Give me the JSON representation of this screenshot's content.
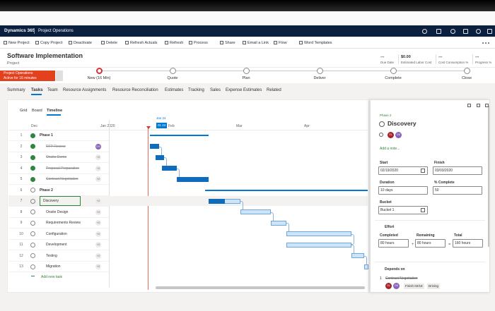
{
  "header": {
    "app": "Dynamics 365",
    "area": "Project Operations"
  },
  "toolbar": [
    "New Project",
    "Copy Project",
    "Deactivate",
    "Delete",
    "Refresh Actuals",
    "Refresh",
    "Process",
    "Share",
    "Email a Link",
    "Flow",
    "Word Templates"
  ],
  "record": {
    "title": "Software Implementation",
    "type": "Project",
    "fields": [
      {
        "value": "---",
        "label": "Due Date"
      },
      {
        "value": "$0.00",
        "label": "Estimated Labor Cost"
      },
      {
        "value": "---",
        "label": "Cost Consumption %"
      },
      {
        "value": "---",
        "label": "Progress %"
      }
    ]
  },
  "process": {
    "name": "Project Operations",
    "status": "Active for 16 minutes",
    "stages": [
      "New (16 Min)",
      "Quote",
      "Plan",
      "Deliver",
      "Complete",
      "Close"
    ]
  },
  "tabs": [
    "Summary",
    "Tasks",
    "Team",
    "Resource Assignments",
    "Resource Reconciliation",
    "Estimates",
    "Tracking",
    "Sales",
    "Expense Estimates",
    "Related"
  ],
  "views": [
    "Grid",
    "Board",
    "Timeline"
  ],
  "timeline": {
    "months": [
      "Dec",
      "Jan 2020",
      "Feb",
      "Mar",
      "Apr"
    ],
    "today": "Jan 24",
    "today_badge": "01 24"
  },
  "tasks": [
    {
      "number": 1,
      "name": "Phase 1",
      "completed": true
    },
    {
      "number": 2,
      "name": "RFP Review",
      "completed": true,
      "assignee": "DS"
    },
    {
      "number": 3,
      "name": "Onsite Demo",
      "completed": true,
      "assignee": "+2"
    },
    {
      "number": 4,
      "name": "Proposal Preparation",
      "completed": true,
      "assignee": "+2"
    },
    {
      "number": 5,
      "name": "Contract Negotiation",
      "completed": true,
      "assignee": "+2"
    },
    {
      "number": 6,
      "name": "Phase 2",
      "completed": false
    },
    {
      "number": 7,
      "name": "Discovery",
      "completed": false,
      "assignee": "+2"
    },
    {
      "number": 8,
      "name": "Onsite Design",
      "completed": false,
      "assignee": "+2"
    },
    {
      "number": 9,
      "name": "Requirements Review",
      "completed": false,
      "assignee": "+2"
    },
    {
      "number": 10,
      "name": "Configuration",
      "completed": false,
      "assignee": "+2"
    },
    {
      "number": 11,
      "name": "Development",
      "completed": false,
      "assignee": "+2"
    },
    {
      "number": 12,
      "name": "Testing",
      "completed": false,
      "assignee": "+2"
    },
    {
      "number": 13,
      "name": "Migration",
      "completed": false,
      "assignee": "+2"
    }
  ],
  "add_task": "Add new task",
  "details": {
    "phase": "Phase 2",
    "name": "Discovery",
    "people": [
      "SL",
      "DS"
    ],
    "note": "Add a note...",
    "start_label": "Start",
    "start": "02/19/2020",
    "finish_label": "Finish",
    "finish": "03/03/2020",
    "duration_label": "Duration",
    "duration": "10 days",
    "complete_label": "% Complete",
    "complete": 50,
    "bucket_label": "Bucket",
    "bucket": "Bucket 1",
    "effort_label": "Effort",
    "completed_label": "Completed",
    "completed": "80 hours",
    "plus": "+",
    "remaining_label": "Remaining",
    "remaining": "80 hours",
    "equals": "=",
    "total_label": "Total",
    "total": "160 hours",
    "depends_label": "Depends on",
    "dependency": {
      "number": 1,
      "name": "Contract Negotiation",
      "people": [
        "SL",
        "DS"
      ],
      "finish": "Finish 02/18",
      "type": "Driving"
    }
  }
}
